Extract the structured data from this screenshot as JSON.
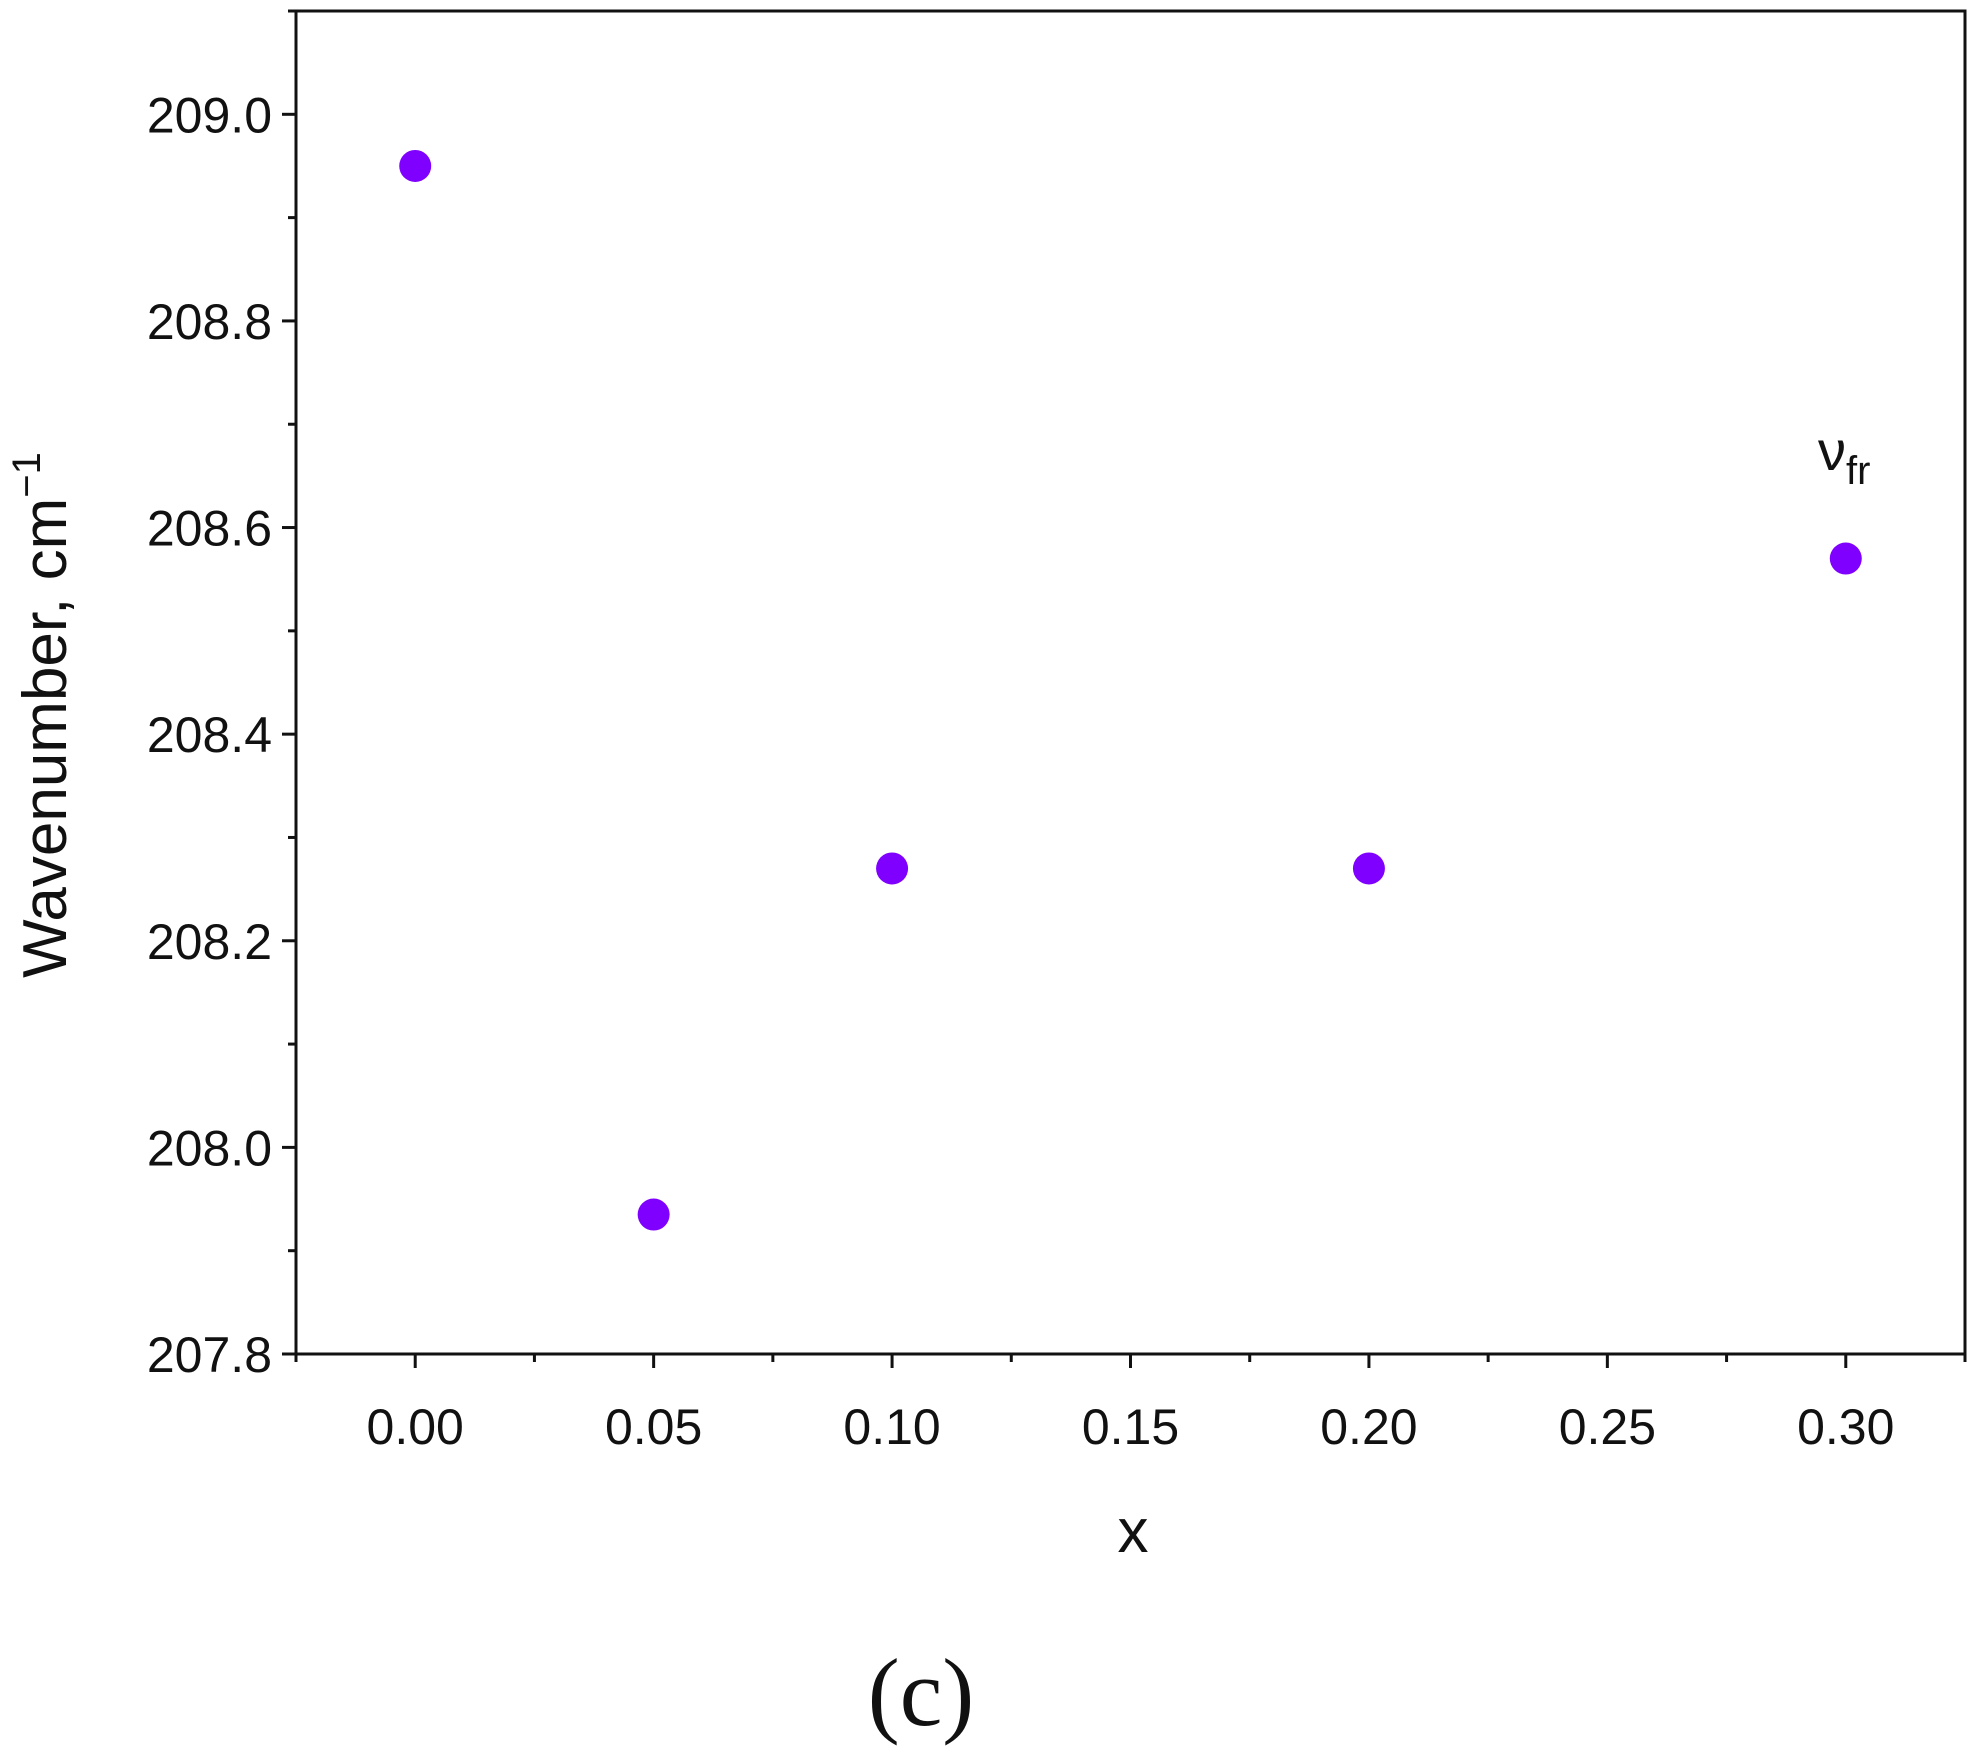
{
  "chart_data": {
    "type": "scatter",
    "title": "",
    "xlabel": "x",
    "ylabel": "Wavenumber, cm",
    "ylabel_sup": "−1",
    "xlim": [
      -0.025,
      0.325
    ],
    "ylim": [
      207.8,
      209.1
    ],
    "x_ticks": [
      "0.00",
      "0.05",
      "0.10",
      "0.15",
      "0.20",
      "0.25",
      "0.30"
    ],
    "y_ticks": [
      "207.8",
      "208.0",
      "208.2",
      "208.4",
      "208.6",
      "208.8",
      "209.0"
    ],
    "grid": false,
    "legend": "none",
    "series": [
      {
        "marker_color": "#8000ff",
        "points": [
          {
            "x": 0.0,
            "y": 208.95
          },
          {
            "x": 0.05,
            "y": 207.935
          },
          {
            "x": 0.1,
            "y": 208.27
          },
          {
            "x": 0.2,
            "y": 208.27
          },
          {
            "x": 0.3,
            "y": 208.57
          }
        ]
      }
    ],
    "annotation": {
      "symbol": "ν",
      "subscript": "fr"
    },
    "panel_label": "(c)"
  }
}
